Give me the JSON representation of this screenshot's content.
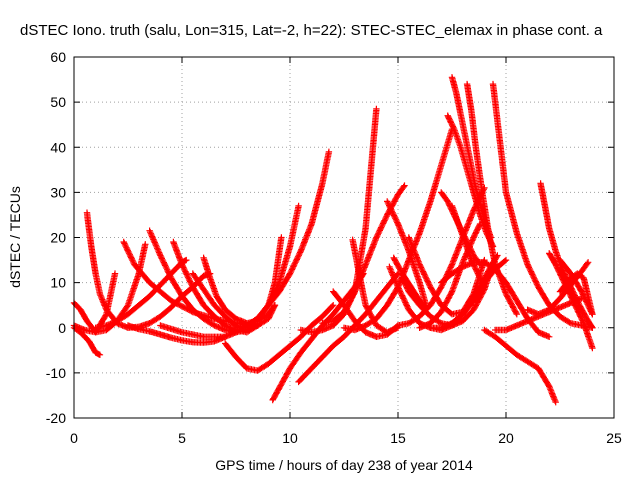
{
  "chart_data": {
    "type": "scatter",
    "title": "dSTEC Iono. truth (salu, Lon=315, Lat=-2, h=22): STEC-STEC_elemax in phase cont. a",
    "xlabel": "GPS time / hours of day 238 of year 2014",
    "ylabel": "dSTEC  / TECUs",
    "xlim": [
      0,
      25
    ],
    "ylim": [
      -20,
      60
    ],
    "xticks": [
      0,
      5,
      10,
      15,
      20,
      25
    ],
    "yticks": [
      -20,
      -10,
      0,
      10,
      20,
      30,
      40,
      50,
      60
    ],
    "grid": true,
    "marker": "+",
    "color": "#ff0000",
    "series": [
      {
        "x": [
          0.0,
          0.3,
          0.7,
          1.0,
          1.2
        ],
        "y": [
          0.0,
          -1.0,
          -3.0,
          -5.5,
          -6.0
        ]
      },
      {
        "x": [
          0.6,
          0.8,
          1.0,
          1.2,
          1.5,
          2.0,
          2.5,
          3.0,
          3.5,
          4.0,
          4.5,
          5.0,
          5.5,
          6.0,
          6.3
        ],
        "y": [
          25.5,
          18.0,
          12.0,
          7.5,
          4.0,
          1.0,
          0.0,
          0.2,
          1.0,
          2.5,
          4.5,
          7.0,
          9.0,
          11.5,
          12.0
        ]
      },
      {
        "x": [
          0.0,
          0.3,
          0.6,
          1.0,
          1.5,
          1.9
        ],
        "y": [
          5.5,
          4.0,
          1.5,
          -1.0,
          3.0,
          12.0
        ]
      },
      {
        "x": [
          0.0,
          0.5,
          1.0,
          1.5,
          2.0,
          2.5,
          3.0,
          3.3
        ],
        "y": [
          0.5,
          -0.5,
          -1.0,
          -0.5,
          1.5,
          5.0,
          12.0,
          18.5
        ]
      },
      {
        "x": [
          2.3,
          2.8,
          3.5,
          4.5,
          5.5,
          6.5,
          7.5,
          8.2
        ],
        "y": [
          19.0,
          14.0,
          10.0,
          6.0,
          3.5,
          2.0,
          1.0,
          0.5
        ]
      },
      {
        "x": [
          1.0,
          1.5,
          2.0,
          2.5,
          3.0,
          3.5,
          4.0,
          4.5,
          5.0,
          5.2
        ],
        "y": [
          0.0,
          0.5,
          1.5,
          3.0,
          5.0,
          7.0,
          9.5,
          12.0,
          14.5,
          15.0
        ]
      },
      {
        "x": [
          3.5,
          4.0,
          4.5,
          5.0,
          5.5,
          6.0,
          6.5,
          7.0,
          7.5,
          8.0,
          8.5
        ],
        "y": [
          21.5,
          16.0,
          11.0,
          7.0,
          4.0,
          2.0,
          0.5,
          -0.5,
          -1.0,
          -0.5,
          0.5
        ]
      },
      {
        "x": [
          4.6,
          5.0,
          5.5,
          6.0,
          6.5,
          7.0,
          7.5,
          8.0,
          8.5
        ],
        "y": [
          19.0,
          14.0,
          9.0,
          5.0,
          2.5,
          0.5,
          -0.5,
          -1.0,
          0.5
        ]
      },
      {
        "x": [
          5.5,
          6.0,
          6.5,
          7.0,
          7.5,
          8.0,
          8.5,
          9.0,
          9.3
        ],
        "y": [
          12.0,
          8.5,
          5.0,
          2.5,
          0.5,
          0.0,
          0.5,
          2.0,
          5.0
        ]
      },
      {
        "x": [
          6.0,
          6.3,
          6.6,
          7.0,
          7.5,
          8.0,
          8.5,
          9.0,
          9.3
        ],
        "y": [
          15.5,
          11.0,
          7.0,
          4.0,
          2.0,
          1.0,
          1.5,
          3.0,
          5.0
        ]
      },
      {
        "x": [
          2.5,
          3.0,
          3.5,
          4.0,
          4.5,
          5.0,
          5.5,
          6.0,
          6.5,
          7.0
        ],
        "y": [
          0.5,
          -0.3,
          -0.8,
          -1.5,
          -2.2,
          -2.8,
          -3.2,
          -3.3,
          -3.0,
          -2.0
        ]
      },
      {
        "x": [
          4.0,
          5.0,
          6.0,
          7.0,
          7.5,
          8.0,
          8.5,
          9.0,
          9.5,
          10.0,
          10.5,
          11.0,
          11.5,
          11.8
        ],
        "y": [
          0.5,
          -1.0,
          -2.0,
          -2.0,
          -1.0,
          0.5,
          2.0,
          5.0,
          8.0,
          12.0,
          17.0,
          23.0,
          32.0,
          39.0
        ]
      },
      {
        "x": [
          7.5,
          8.0,
          8.5,
          9.0,
          9.5,
          10.0,
          10.4
        ],
        "y": [
          0.0,
          0.5,
          2.0,
          5.0,
          10.0,
          18.0,
          27.0
        ]
      },
      {
        "x": [
          7.0,
          7.5,
          8.0,
          8.5,
          9.0,
          9.5,
          10.0,
          10.5,
          11.0,
          11.5,
          12.0
        ],
        "y": [
          -3.5,
          -6.5,
          -9.0,
          -9.5,
          -8.0,
          -6.0,
          -4.0,
          -2.0,
          0.5,
          2.5,
          5.0
        ]
      },
      {
        "x": [
          8.2,
          8.6,
          9.0,
          9.3,
          9.6
        ],
        "y": [
          1.0,
          2.5,
          5.0,
          10.0,
          20.0
        ]
      },
      {
        "x": [
          9.2,
          9.6,
          10.0,
          10.5,
          11.0,
          11.5,
          12.0,
          12.5,
          13.0,
          13.4
        ],
        "y": [
          -16.0,
          -12.5,
          -9.0,
          -5.5,
          -2.5,
          0.5,
          3.0,
          6.0,
          9.0,
          12.0
        ]
      },
      {
        "x": [
          10.4,
          11.0,
          11.5,
          12.0,
          12.5,
          13.0,
          13.5,
          14.0,
          14.5,
          15.0
        ],
        "y": [
          -12.0,
          -9.0,
          -6.5,
          -4.0,
          -2.0,
          0.5,
          3.0,
          6.0,
          9.0,
          12.0
        ]
      },
      {
        "x": [
          12.0,
          12.5,
          13.0,
          13.5,
          14.0,
          14.5,
          15.0
        ],
        "y": [
          8.0,
          5.0,
          1.5,
          -1.0,
          -2.0,
          -1.5,
          0.5
        ]
      },
      {
        "x": [
          11.5,
          12.0,
          12.5,
          13.0,
          13.5,
          14.0,
          14.5,
          15.0,
          15.3
        ],
        "y": [
          1.0,
          1.5,
          3.5,
          8.0,
          14.0,
          20.0,
          25.0,
          29.5,
          31.5
        ]
      },
      {
        "x": [
          10.5,
          11.0,
          11.5,
          12.0,
          12.5,
          13.0,
          13.5,
          14.0
        ],
        "y": [
          -0.5,
          -1.0,
          -0.5,
          0.5,
          3.0,
          8.0,
          22.0,
          48.5
        ]
      },
      {
        "x": [
          12.9,
          13.2,
          13.5,
          14.0,
          14.5,
          15.0
        ],
        "y": [
          19.5,
          12.0,
          5.0,
          0.5,
          -1.0,
          0.0
        ]
      },
      {
        "x": [
          12.5,
          13.0,
          13.5,
          14.0,
          14.5,
          15.0,
          15.5,
          16.0,
          16.5,
          17.0,
          17.5
        ],
        "y": [
          0.0,
          -0.5,
          0.5,
          2.0,
          5.0,
          9.0,
          15.0,
          21.0,
          28.0,
          36.0,
          44.0
        ]
      },
      {
        "x": [
          14.5,
          15.0,
          15.5,
          16.0,
          16.3
        ],
        "y": [
          28.0,
          23.0,
          17.0,
          10.0,
          5.0
        ]
      },
      {
        "x": [
          14.8,
          15.2,
          15.6,
          16.0,
          16.3
        ],
        "y": [
          15.5,
          12.0,
          9.0,
          6.0,
          4.5
        ]
      },
      {
        "x": [
          15.0,
          15.5,
          16.0,
          16.5,
          17.0,
          17.5,
          18.0,
          18.5,
          19.0
        ],
        "y": [
          0.5,
          1.0,
          2.5,
          5.0,
          9.0,
          14.0,
          20.0,
          26.0,
          31.0
        ]
      },
      {
        "x": [
          14.6,
          15.0,
          15.5,
          16.0,
          16.5,
          17.0,
          17.5,
          18.0,
          18.5,
          19.0,
          19.6
        ],
        "y": [
          13.5,
          9.0,
          4.0,
          1.0,
          0.0,
          0.0,
          1.0,
          3.0,
          6.5,
          11.0,
          16.0
        ]
      },
      {
        "x": [
          15.2,
          15.5,
          16.0,
          16.5,
          17.0,
          17.5,
          18.0,
          18.5,
          19.0,
          19.4
        ],
        "y": [
          11.0,
          8.0,
          5.0,
          2.5,
          1.0,
          0.5,
          1.5,
          4.0,
          8.5,
          14.5
        ]
      },
      {
        "x": [
          15.5,
          16.0,
          16.5,
          17.0,
          17.5,
          18.0,
          18.5,
          19.0
        ],
        "y": [
          20.0,
          14.0,
          9.0,
          5.0,
          3.0,
          3.5,
          7.5,
          15.0
        ]
      },
      {
        "x": [
          16.0,
          16.5,
          17.0,
          17.5,
          18.0,
          18.5,
          18.8
        ],
        "y": [
          0.0,
          1.0,
          3.5,
          8.0,
          14.5,
          20.0,
          23.0
        ]
      },
      {
        "x": [
          17.5,
          17.7,
          18.0,
          18.3,
          18.6,
          19.0,
          19.3
        ],
        "y": [
          55.5,
          52.0,
          45.0,
          38.0,
          31.0,
          24.0,
          20.0
        ]
      },
      {
        "x": [
          17.3,
          17.6,
          17.9,
          18.2,
          18.5,
          18.8,
          19.1,
          19.4
        ],
        "y": [
          47.0,
          44.0,
          40.0,
          35.0,
          30.0,
          25.0,
          21.0,
          18.0
        ]
      },
      {
        "x": [
          18.2,
          18.4,
          18.6,
          18.9,
          19.2,
          19.5,
          20.0,
          20.5
        ],
        "y": [
          54.0,
          48.0,
          40.0,
          30.0,
          21.0,
          14.0,
          7.5,
          3.0
        ]
      },
      {
        "x": [
          17.0,
          17.3,
          17.6,
          17.9,
          18.2,
          18.5,
          18.8
        ],
        "y": [
          30.0,
          28.0,
          25.0,
          22.0,
          19.0,
          16.0,
          14.0
        ]
      },
      {
        "x": [
          17.5,
          17.8,
          18.1,
          18.4,
          18.7,
          19.0
        ],
        "y": [
          27.0,
          23.0,
          19.0,
          15.0,
          12.0,
          9.0
        ]
      },
      {
        "x": [
          16.5,
          17.0,
          17.5,
          18.0,
          18.5,
          19.0,
          19.5,
          20.0
        ],
        "y": [
          0.0,
          -0.5,
          0.5,
          3.0,
          6.0,
          10.0,
          13.0,
          15.0
        ]
      },
      {
        "x": [
          17.0,
          17.5,
          18.0,
          18.5,
          19.0,
          19.5,
          20.0,
          20.5,
          21.0,
          21.5,
          22.0
        ],
        "y": [
          10.0,
          12.0,
          13.5,
          14.5,
          14.5,
          13.0,
          10.0,
          6.0,
          2.0,
          -1.0,
          -2.0
        ]
      },
      {
        "x": [
          19.4,
          19.6,
          19.8,
          20.0,
          20.5,
          21.0,
          21.5,
          22.0,
          22.5,
          23.0,
          23.5,
          24.0
        ],
        "y": [
          54.0,
          46.0,
          38.0,
          30.0,
          21.0,
          14.0,
          9.0,
          5.0,
          2.5,
          1.0,
          0.5,
          0.0
        ]
      },
      {
        "x": [
          19.0,
          19.5,
          20.0,
          20.5,
          21.0,
          21.5,
          22.0,
          22.3
        ],
        "y": [
          -0.5,
          -2.0,
          -4.0,
          -6.0,
          -7.5,
          -9.0,
          -13.0,
          -16.5
        ]
      },
      {
        "x": [
          19.5,
          20.0,
          20.5,
          21.0,
          21.5,
          22.0,
          22.5,
          23.0,
          23.5
        ],
        "y": [
          -0.5,
          -0.5,
          0.5,
          1.5,
          2.5,
          3.5,
          4.5,
          5.5,
          6.5
        ]
      },
      {
        "x": [
          21.6,
          21.8,
          22.0,
          22.3,
          22.6,
          23.0,
          23.4,
          23.8,
          24.0
        ],
        "y": [
          32.0,
          27.0,
          22.0,
          17.0,
          13.0,
          9.0,
          5.0,
          1.5,
          0.0
        ]
      },
      {
        "x": [
          22.0,
          22.3,
          22.6,
          23.0,
          23.3,
          23.6,
          24.0
        ],
        "y": [
          16.5,
          14.0,
          11.0,
          7.0,
          4.0,
          1.0,
          -4.5
        ]
      },
      {
        "x": [
          22.5,
          23.0,
          23.3,
          23.6,
          24.0
        ],
        "y": [
          8.0,
          11.0,
          12.0,
          11.0,
          3.0
        ]
      },
      {
        "x": [
          21.0,
          21.5,
          22.0,
          22.5,
          23.0,
          23.5,
          23.8
        ],
        "y": [
          4.0,
          3.0,
          4.0,
          6.5,
          9.5,
          12.5,
          14.5
        ]
      },
      {
        "x": [
          22.5,
          23.0,
          23.5,
          24.0
        ],
        "y": [
          15.0,
          12.0,
          8.0,
          3.0
        ]
      }
    ]
  }
}
